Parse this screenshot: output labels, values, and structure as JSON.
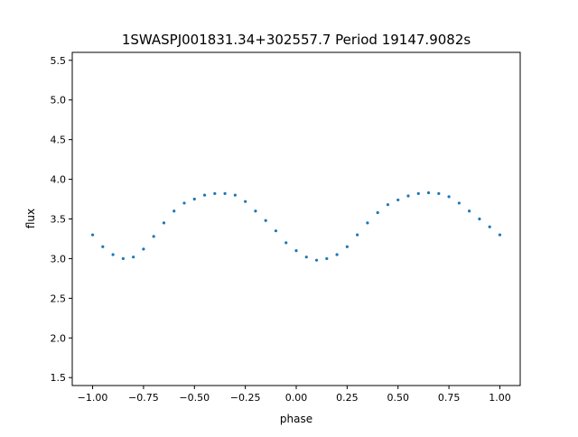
{
  "chart_data": {
    "type": "scatter",
    "title": "1SWASPJ001831.34+302557.7 Period 19147.9082s",
    "xlabel": "phase",
    "ylabel": "flux",
    "xlim": [
      -1.1,
      1.1
    ],
    "ylim": [
      1.4,
      5.6
    ],
    "x_ticks": [
      -1.0,
      -0.75,
      -0.5,
      -0.25,
      0.0,
      0.25,
      0.5,
      0.75,
      1.0
    ],
    "x_tick_labels": [
      "−1.00",
      "−0.75",
      "−0.50",
      "−0.25",
      "0.00",
      "0.25",
      "0.50",
      "0.75",
      "1.00"
    ],
    "y_ticks": [
      1.5,
      2.0,
      2.5,
      3.0,
      3.5,
      4.0,
      4.5,
      5.0,
      5.5
    ],
    "y_tick_labels": [
      "1.5",
      "2.0",
      "2.5",
      "3.0",
      "3.5",
      "4.0",
      "4.5",
      "5.0",
      "5.5"
    ],
    "grid": false,
    "marker_color": "#1f77b4",
    "series": [
      {
        "x": [
          -1.0,
          -0.95,
          -0.9,
          -0.85,
          -0.8,
          -0.75,
          -0.7,
          -0.65,
          -0.6,
          -0.55,
          -0.5,
          -0.45,
          -0.4,
          -0.35,
          -0.3,
          -0.25,
          -0.2,
          -0.15,
          -0.1,
          -0.05,
          0.0,
          0.05,
          0.1,
          0.15,
          0.2,
          0.25,
          0.3,
          0.35,
          0.4,
          0.45,
          0.5,
          0.55,
          0.6,
          0.65,
          0.7,
          0.75,
          0.8,
          0.85,
          0.9,
          0.95,
          1.0
        ],
        "y": [
          3.3,
          3.15,
          3.05,
          3.0,
          3.02,
          3.12,
          3.28,
          3.45,
          3.6,
          3.7,
          3.75,
          3.8,
          3.82,
          3.82,
          3.8,
          3.72,
          3.6,
          3.48,
          3.35,
          3.2,
          3.1,
          3.02,
          2.98,
          3.0,
          3.05,
          3.15,
          3.3,
          3.45,
          3.58,
          3.68,
          3.74,
          3.79,
          3.82,
          3.83,
          3.82,
          3.78,
          3.7,
          3.6,
          3.5,
          3.4,
          3.3
        ]
      }
    ]
  }
}
